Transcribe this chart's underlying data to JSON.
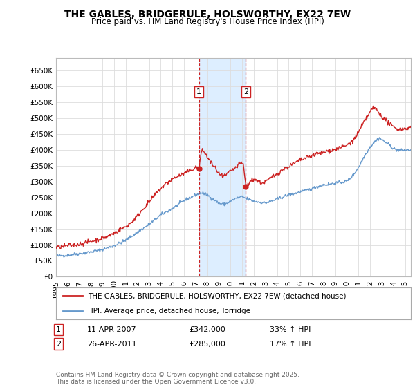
{
  "title": "THE GABLES, BRIDGERULE, HOLSWORTHY, EX22 7EW",
  "subtitle": "Price paid vs. HM Land Registry's House Price Index (HPI)",
  "yticks": [
    0,
    50000,
    100000,
    150000,
    200000,
    250000,
    300000,
    350000,
    400000,
    450000,
    500000,
    550000,
    600000,
    650000
  ],
  "ytick_labels": [
    "£0",
    "£50K",
    "£100K",
    "£150K",
    "£200K",
    "£250K",
    "£300K",
    "£350K",
    "£400K",
    "£450K",
    "£500K",
    "£550K",
    "£600K",
    "£650K"
  ],
  "ylim": [
    0,
    690000
  ],
  "xlim_start": 1995.0,
  "xlim_end": 2025.5,
  "xticks": [
    1995,
    1996,
    1997,
    1998,
    1999,
    2000,
    2001,
    2002,
    2003,
    2004,
    2005,
    2006,
    2007,
    2008,
    2009,
    2010,
    2011,
    2012,
    2013,
    2014,
    2015,
    2016,
    2017,
    2018,
    2019,
    2020,
    2021,
    2022,
    2023,
    2024,
    2025
  ],
  "hpi_color": "#6699cc",
  "price_color": "#cc2222",
  "sale1_x": 2007.28,
  "sale1_y": 342000,
  "sale2_x": 2011.32,
  "sale2_y": 285000,
  "sale1_label": "1",
  "sale2_label": "2",
  "shade_color": "#ddeeff",
  "dashed_color": "#cc2222",
  "legend_line1": "THE GABLES, BRIDGERULE, HOLSWORTHY, EX22 7EW (detached house)",
  "legend_line2": "HPI: Average price, detached house, Torridge",
  "annotation1": [
    "1",
    "11-APR-2007",
    "£342,000",
    "33% ↑ HPI"
  ],
  "annotation2": [
    "2",
    "26-APR-2011",
    "£285,000",
    "17% ↑ HPI"
  ],
  "footnote": "Contains HM Land Registry data © Crown copyright and database right 2025.\nThis data is licensed under the Open Government Licence v3.0.",
  "background_color": "#ffffff",
  "grid_color": "#dddddd"
}
